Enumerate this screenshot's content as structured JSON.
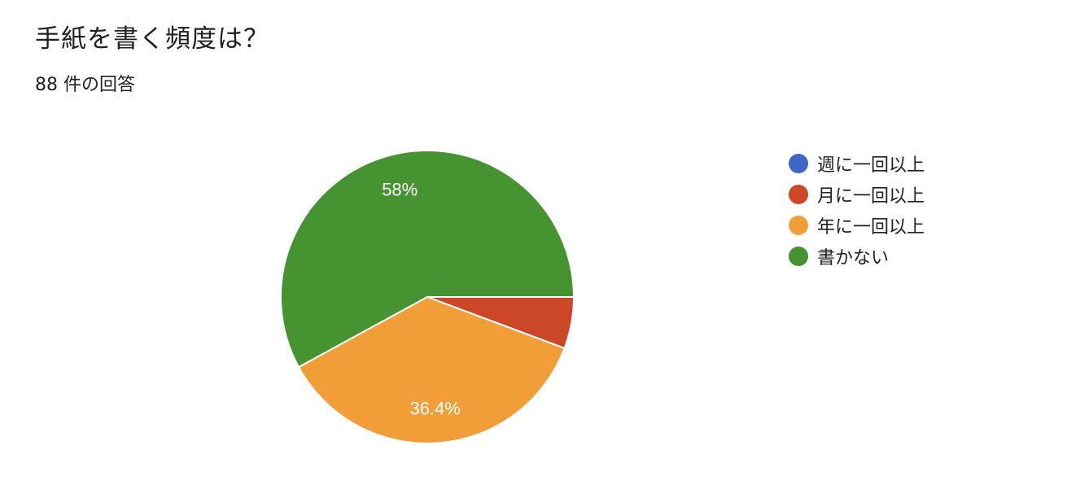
{
  "title": "手紙を書く頻度は？",
  "subtitle": "88 件の回答",
  "chart_data": {
    "type": "pie",
    "title": "手紙を書く頻度は？",
    "total_responses": 88,
    "legend_position": "right",
    "slices": [
      {
        "name": "週に一回以上",
        "value": 0,
        "color": "#3f67c8",
        "label": ""
      },
      {
        "name": "月に一回以上",
        "value": 5.7,
        "color": "#cc4628",
        "label": ""
      },
      {
        "name": "年に一回以上",
        "value": 36.4,
        "color": "#f19e38",
        "label": "36.4%"
      },
      {
        "name": "書かない",
        "value": 58,
        "color": "#459331",
        "label": "58%"
      }
    ]
  }
}
